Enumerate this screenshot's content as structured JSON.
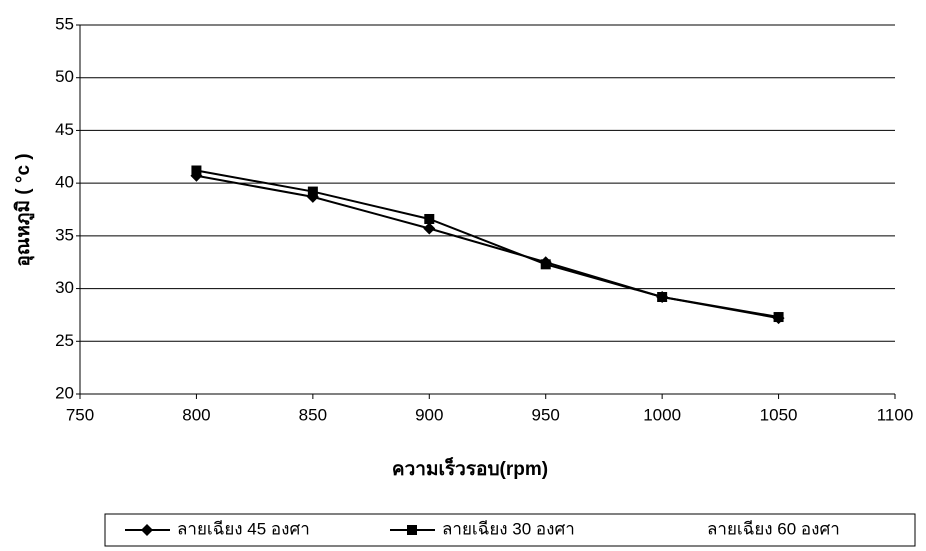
{
  "chart_data": {
    "type": "line",
    "x": [
      800,
      850,
      900,
      950,
      1000,
      1050
    ],
    "series": [
      {
        "name": "ลายเฉียง 45 องศา",
        "color": "#000000",
        "marker": "diamond",
        "values": [
          40.7,
          38.7,
          35.7,
          32.5,
          29.2,
          27.2
        ]
      },
      {
        "name": "ลายเฉียง 30 องศา",
        "color": "#000000",
        "marker": "square",
        "values": [
          41.2,
          39.2,
          36.6,
          32.3,
          29.2,
          27.3
        ]
      },
      {
        "name": "ลายเฉียง 60 องศา",
        "color": "#ffffff",
        "marker": "none",
        "values": [
          null,
          null,
          null,
          null,
          null,
          null
        ]
      }
    ],
    "xlabel": "ความเร็วรอบ(rpm)",
    "ylabel": "อุณหภูมิ ( °c )",
    "xlim": [
      750,
      1100
    ],
    "xticks": [
      750,
      800,
      850,
      900,
      950,
      1000,
      1050,
      1100
    ],
    "ylim": [
      20,
      55
    ],
    "yticks": [
      20,
      25,
      30,
      35,
      40,
      45,
      50,
      55
    ],
    "grid": true,
    "legend": "bottom"
  }
}
